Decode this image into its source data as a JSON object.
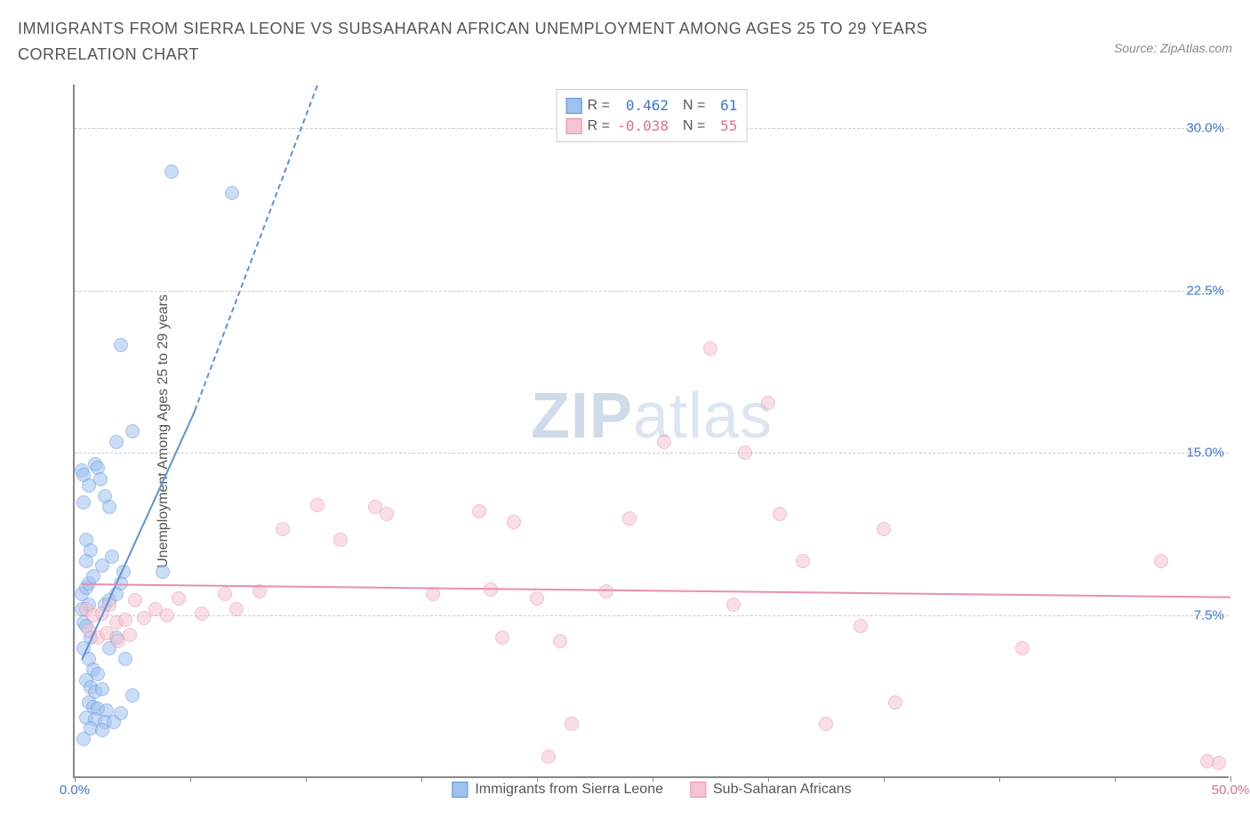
{
  "title": "IMMIGRANTS FROM SIERRA LEONE VS SUBSAHARAN AFRICAN UNEMPLOYMENT AMONG AGES 25 TO 29 YEARS CORRELATION CHART",
  "source": "Source: ZipAtlas.com",
  "ylabel": "Unemployment Among Ages 25 to 29 years",
  "watermark": {
    "a": "ZIP",
    "b": "atlas"
  },
  "chart": {
    "type": "scatter",
    "xlim": [
      0,
      50
    ],
    "ylim": [
      0,
      32
    ],
    "xticks": [
      0,
      5,
      10,
      15,
      20,
      25,
      30,
      35,
      40,
      45,
      50
    ],
    "xtick_labels": {
      "0": "0.0%",
      "50": "50.0%"
    },
    "yticks": [
      7.5,
      15.0,
      22.5,
      30.0
    ],
    "ytick_labels": [
      "7.5%",
      "15.0%",
      "22.5%",
      "30.0%"
    ],
    "xlabel_color_left": "#3a77d6",
    "xlabel_color_right": "#e86b94",
    "ylabel_color": "#3a77d6",
    "background": "#ffffff",
    "grid_color": "#cccccc",
    "axis_color": "#888888",
    "marker_size": 16,
    "marker_border": 1.5,
    "marker_opacity": 0.55
  },
  "series": [
    {
      "name": "Immigrants from Sierra Leone",
      "color_fill": "#9fc1ef",
      "color_stroke": "#5a93dd",
      "R": "0.462",
      "N": "61",
      "value_color": "#3a77d6",
      "trend": {
        "x1": 0.3,
        "y1": 5.5,
        "x2": 5.2,
        "y2": 17.0,
        "dash_to_x": 10.5,
        "dash_to_y": 32.0
      },
      "points": [
        [
          0.3,
          8.5
        ],
        [
          0.4,
          7.2
        ],
        [
          0.5,
          8.8
        ],
        [
          0.6,
          9.0
        ],
        [
          0.3,
          14.2
        ],
        [
          0.4,
          14.0
        ],
        [
          0.6,
          13.5
        ],
        [
          0.4,
          12.7
        ],
        [
          0.5,
          11.0
        ],
        [
          0.7,
          10.5
        ],
        [
          0.5,
          10.0
        ],
        [
          0.8,
          9.3
        ],
        [
          0.6,
          8.0
        ],
        [
          0.3,
          7.8
        ],
        [
          0.5,
          7.0
        ],
        [
          0.7,
          6.5
        ],
        [
          0.4,
          6.0
        ],
        [
          0.6,
          5.5
        ],
        [
          0.8,
          5.0
        ],
        [
          1.0,
          4.8
        ],
        [
          0.5,
          4.5
        ],
        [
          0.7,
          4.2
        ],
        [
          0.9,
          4.0
        ],
        [
          1.2,
          4.1
        ],
        [
          0.6,
          3.5
        ],
        [
          0.8,
          3.3
        ],
        [
          1.0,
          3.2
        ],
        [
          1.4,
          3.1
        ],
        [
          0.5,
          2.8
        ],
        [
          0.9,
          2.7
        ],
        [
          1.3,
          2.6
        ],
        [
          1.7,
          2.6
        ],
        [
          0.7,
          2.3
        ],
        [
          1.2,
          2.2
        ],
        [
          0.4,
          1.8
        ],
        [
          2.0,
          3.0
        ],
        [
          2.5,
          3.8
        ],
        [
          1.5,
          6.0
        ],
        [
          1.8,
          6.5
        ],
        [
          2.2,
          5.5
        ],
        [
          1.3,
          8.0
        ],
        [
          1.5,
          8.2
        ],
        [
          1.8,
          8.5
        ],
        [
          2.0,
          9.0
        ],
        [
          1.2,
          9.8
        ],
        [
          1.6,
          10.2
        ],
        [
          2.1,
          9.5
        ],
        [
          3.8,
          9.5
        ],
        [
          0.9,
          14.5
        ],
        [
          1.0,
          14.3
        ],
        [
          1.1,
          13.8
        ],
        [
          1.3,
          13.0
        ],
        [
          1.5,
          12.5
        ],
        [
          1.8,
          15.5
        ],
        [
          2.5,
          16.0
        ],
        [
          4.2,
          28.0
        ],
        [
          6.8,
          27.0
        ],
        [
          2.0,
          20.0
        ]
      ]
    },
    {
      "name": "Sub-Saharan Africans",
      "color_fill": "#f6c4d3",
      "color_stroke": "#e88fab",
      "R": "-0.038",
      "N": "55",
      "value_color": "#e86b94",
      "trend": {
        "x1": 0.3,
        "y1": 9.0,
        "x2": 50.0,
        "y2": 8.4
      },
      "points": [
        [
          0.5,
          7.8
        ],
        [
          0.8,
          7.5
        ],
        [
          1.2,
          7.6
        ],
        [
          1.5,
          8.0
        ],
        [
          1.8,
          7.2
        ],
        [
          2.2,
          7.3
        ],
        [
          2.6,
          8.2
        ],
        [
          3.0,
          7.4
        ],
        [
          3.5,
          7.8
        ],
        [
          4.0,
          7.5
        ],
        [
          4.5,
          8.3
        ],
        [
          5.5,
          7.6
        ],
        [
          6.5,
          8.5
        ],
        [
          7.0,
          7.8
        ],
        [
          8.0,
          8.6
        ],
        [
          0.6,
          6.8
        ],
        [
          1.0,
          6.5
        ],
        [
          1.4,
          6.7
        ],
        [
          1.9,
          6.3
        ],
        [
          2.4,
          6.6
        ],
        [
          9.0,
          11.5
        ],
        [
          10.5,
          12.6
        ],
        [
          11.5,
          11.0
        ],
        [
          13.0,
          12.5
        ],
        [
          13.5,
          12.2
        ],
        [
          15.5,
          8.5
        ],
        [
          17.5,
          12.3
        ],
        [
          18.0,
          8.7
        ],
        [
          18.5,
          6.5
        ],
        [
          19.0,
          11.8
        ],
        [
          20.0,
          8.3
        ],
        [
          20.5,
          1.0
        ],
        [
          21.0,
          6.3
        ],
        [
          21.5,
          2.5
        ],
        [
          23.0,
          8.6
        ],
        [
          24.0,
          12.0
        ],
        [
          25.5,
          15.5
        ],
        [
          27.5,
          19.8
        ],
        [
          28.5,
          8.0
        ],
        [
          29.0,
          15.0
        ],
        [
          30.0,
          17.3
        ],
        [
          30.5,
          12.2
        ],
        [
          31.5,
          10.0
        ],
        [
          32.5,
          2.5
        ],
        [
          34.0,
          7.0
        ],
        [
          35.0,
          11.5
        ],
        [
          35.5,
          3.5
        ],
        [
          41.0,
          6.0
        ],
        [
          47.0,
          10.0
        ],
        [
          49.0,
          0.8
        ],
        [
          49.5,
          0.7
        ]
      ]
    }
  ],
  "legend": {
    "r_label": "R =",
    "n_label": "N ="
  }
}
